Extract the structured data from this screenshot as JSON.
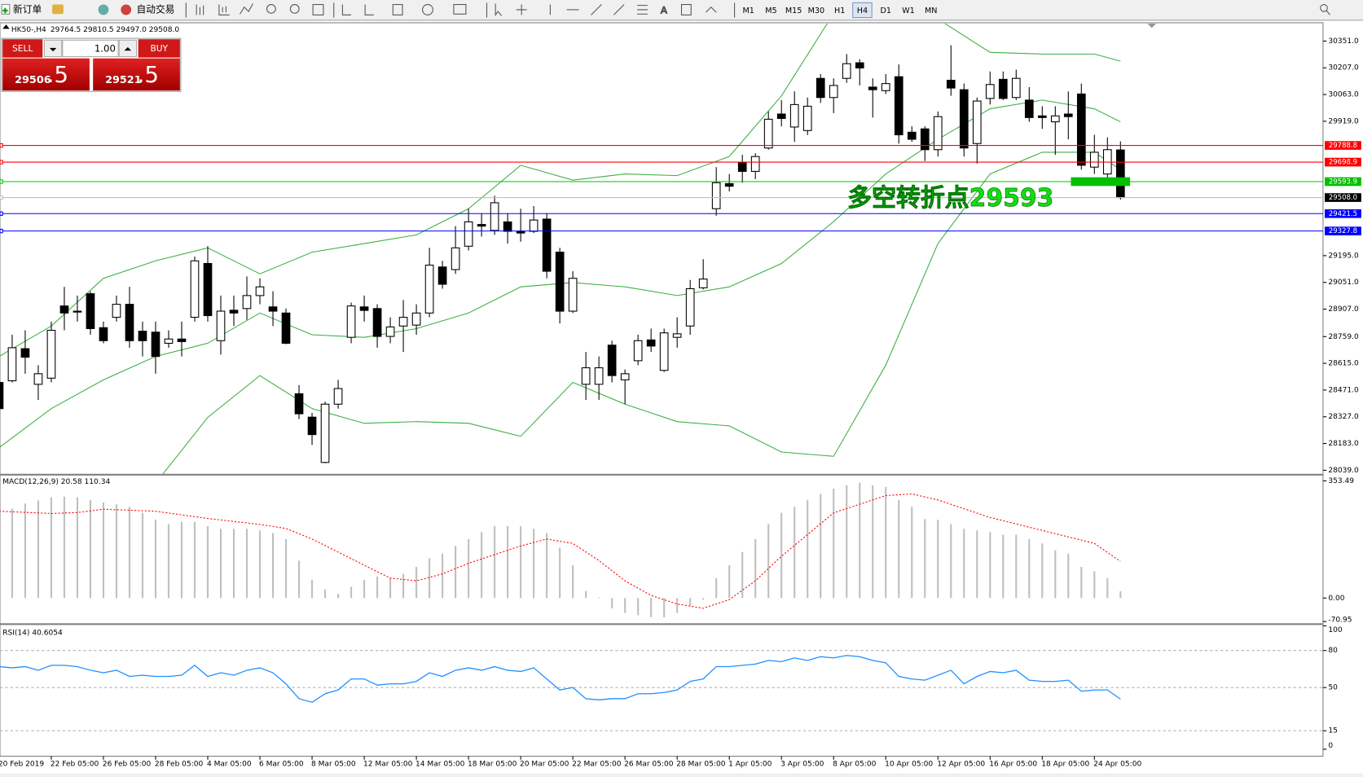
{
  "toolbar": {
    "new_order": "新订单",
    "auto_trading": "自动交易",
    "timeframes": [
      "M1",
      "M5",
      "M15",
      "M30",
      "H1",
      "H4",
      "D1",
      "W1",
      "MN"
    ]
  },
  "trade_panel": {
    "sell": "SELL",
    "buy": "BUY",
    "lots": "1.00",
    "sell_price": "29506",
    "sell_pips": ".5",
    "buy_price": "29521",
    "buy_pips": ".5"
  },
  "chart_data": [
    {
      "type": "candlestick",
      "title": "HK50-,H4",
      "subtitle": "29764.5 29810.5 29497.0 29508.0",
      "categories": [
        "20 Feb 2019",
        null,
        null,
        null,
        "22 Feb 05:00",
        null,
        null,
        null,
        "26 Feb 05:00",
        null,
        null,
        null,
        "28 Feb 05:00",
        null,
        null,
        null,
        "4 Mar 05:00",
        null,
        null,
        null,
        "6 Mar 05:00",
        null,
        null,
        null,
        "8 Mar 05:00",
        null,
        null,
        null,
        "12 Mar 05:00",
        null,
        null,
        null,
        "14 Mar 05:00",
        null,
        null,
        null,
        "18 Mar 05:00",
        null,
        null,
        null,
        "20 Mar 05:00",
        null,
        null,
        null,
        "22 Mar 05:00",
        null,
        null,
        null,
        "26 Mar 05:00",
        null,
        null,
        null,
        "28 Mar 05:00",
        null,
        null,
        null,
        "1 Apr 05:00",
        null,
        null,
        null,
        "3 Apr 05:00",
        null,
        null,
        null,
        "8 Apr 05:00",
        null,
        null,
        null,
        "10 Apr 05:00",
        null,
        null,
        null,
        "12 Apr 05:00",
        null,
        null,
        null,
        "16 Apr 05:00",
        null,
        null,
        null,
        "18 Apr 05:00",
        null,
        null,
        null,
        "24 Apr 05:00",
        null,
        null
      ],
      "open": [
        28512,
        28521,
        28694,
        28502,
        28535,
        28924,
        28896,
        28990,
        28807,
        28863,
        28933,
        28788,
        28783,
        28723,
        28746,
        28863,
        29153,
        28737,
        28901,
        28910,
        28980,
        28919,
        28886,
        28451,
        28325,
        28081,
        28395,
        28755,
        28919,
        28910,
        28760,
        28816,
        28821,
        28886,
        29134,
        29120,
        29246,
        29363,
        29331,
        29377,
        29326,
        29326,
        29392,
        29214,
        28896,
        28502,
        28502,
        28713,
        28526,
        28629,
        28741,
        28577,
        28755,
        28816,
        29022,
        29448,
        29583,
        29695,
        29649,
        29775,
        29958,
        29888,
        29869,
        30150,
        30047,
        30150,
        30234,
        30103,
        30084,
        30159,
        29860,
        29878,
        29766,
        30140,
        30089,
        29799,
        30042,
        30145,
        30047,
        30033,
        29948,
        29916,
        29958,
        30066,
        29672,
        29635,
        29764.5
      ],
      "high": [
        28559,
        28769,
        28793,
        28605,
        28840,
        29027,
        28980,
        29003,
        28840,
        28980,
        29027,
        28840,
        28840,
        28793,
        28840,
        29190,
        29246,
        28980,
        28980,
        29083,
        29073,
        29003,
        28910,
        28498,
        28348,
        28409,
        28526,
        28942,
        28980,
        28933,
        28863,
        28956,
        28933,
        29237,
        29167,
        29354,
        29448,
        29424,
        29518,
        29424,
        29448,
        29462,
        29424,
        29237,
        29111,
        28676,
        28652,
        28737,
        28582,
        28769,
        28802,
        28802,
        28863,
        29064,
        29176,
        29672,
        29635,
        29738,
        29747,
        29972,
        30033,
        30080,
        30047,
        30173,
        30150,
        30281,
        30253,
        30150,
        30173,
        30225,
        29892,
        29892,
        29972,
        30328,
        30122,
        30047,
        30187,
        30187,
        30197,
        30103,
        30000,
        30000,
        30080,
        30122,
        29846,
        29832,
        29810.5
      ],
      "low": [
        28348,
        28512,
        28559,
        28418,
        28512,
        28793,
        28840,
        28769,
        28723,
        28840,
        28699,
        28652,
        28559,
        28699,
        28652,
        28840,
        28840,
        28662,
        28816,
        28849,
        28933,
        28816,
        28718,
        28315,
        28175,
        28077,
        28371,
        28723,
        28840,
        28699,
        28723,
        28676,
        28769,
        28863,
        29017,
        29097,
        29223,
        29298,
        29307,
        29260,
        29270,
        29317,
        29073,
        28830,
        28886,
        28418,
        28418,
        28512,
        28395,
        28605,
        28676,
        28568,
        28699,
        28769,
        29013,
        29410,
        29541,
        29588,
        29607,
        29766,
        29892,
        29808,
        29845,
        30019,
        29963,
        30126,
        30112,
        29939,
        30066,
        29799,
        29808,
        29705,
        29729,
        30056,
        29729,
        29691,
        30009,
        30033,
        30033,
        29916,
        29878,
        29738,
        29822,
        29658,
        29635,
        29616,
        29497.0
      ],
      "close": [
        28371,
        28699,
        28648,
        28559,
        28793,
        28886,
        28891,
        28802,
        28737,
        28933,
        28737,
        28737,
        28652,
        28746,
        28732,
        29167,
        28872,
        28896,
        28886,
        28980,
        29027,
        28896,
        28723,
        28343,
        28231,
        28395,
        28479,
        28924,
        28900,
        28760,
        28811,
        28863,
        28886,
        29144,
        29041,
        29237,
        29377,
        29354,
        29480,
        29326,
        29317,
        29387,
        29111,
        28896,
        29073,
        28591,
        28591,
        28549,
        28559,
        28737,
        28708,
        28779,
        28774,
        29017,
        29069,
        29588,
        29569,
        29649,
        29729,
        29930,
        29934,
        30009,
        30000,
        30047,
        30112,
        30229,
        30206,
        30089,
        30122,
        29846,
        29822,
        29766,
        29944,
        30098,
        29775,
        30028,
        30117,
        30042,
        30150,
        29939,
        29939,
        29948,
        29944,
        29682,
        29752,
        29766,
        29508.0
      ],
      "up_color": "#ffffff",
      "down_color": "#000000",
      "ylim": [
        28020,
        30445
      ],
      "yticks": [
        {
          "value": 30351,
          "label": "30351.0"
        },
        {
          "value": 30207,
          "label": "30207.0"
        },
        {
          "value": 30063,
          "label": "30063.0"
        },
        {
          "value": 29919,
          "label": "29919.0"
        },
        {
          "value": 29195,
          "label": "29195.0"
        },
        {
          "value": 29051,
          "label": "29051.0"
        },
        {
          "value": 28907,
          "label": "28907.0"
        },
        {
          "value": 28759,
          "label": "28759.0"
        },
        {
          "value": 28615,
          "label": "28615.0"
        },
        {
          "value": 28471,
          "label": "28471.0"
        },
        {
          "value": 28327,
          "label": "28327.0"
        },
        {
          "value": 28183,
          "label": "28183.0"
        },
        {
          "value": 28039,
          "label": "28039.0"
        }
      ],
      "overlays": [
        {
          "color": "#3cb043",
          "x": [
            0,
            4,
            8,
            12,
            16,
            20,
            24,
            28,
            32,
            36,
            40,
            44,
            48,
            52,
            56,
            60,
            64,
            68,
            72,
            76,
            80,
            84,
            86
          ],
          "values": [
            28652,
            28816,
            29073,
            29167,
            29237,
            29097,
            29214,
            29260,
            29307,
            29448,
            29682,
            29602,
            29635,
            29626,
            29729,
            30056,
            30500,
            30520,
            30470,
            30290,
            30281,
            30281,
            30243
          ]
        },
        {
          "color": "#3cb043",
          "x": [
            0,
            4,
            8,
            12,
            16,
            20,
            24,
            28,
            32,
            36,
            40,
            44,
            48,
            52,
            56,
            60,
            64,
            68,
            72,
            76,
            80,
            84,
            86
          ],
          "values": [
            28161,
            28371,
            28526,
            28652,
            28723,
            28886,
            28769,
            28755,
            28802,
            28886,
            29027,
            29050,
            29027,
            28980,
            29027,
            29153,
            29378,
            29635,
            29822,
            29986,
            30033,
            29986,
            29916
          ]
        },
        {
          "color": "#3cb043",
          "x": [
            12,
            16,
            20,
            24,
            28,
            32,
            36,
            40,
            44,
            48,
            52,
            56,
            60,
            64,
            68,
            72,
            76,
            80,
            84,
            86
          ],
          "values": [
            27969,
            28324,
            28549,
            28371,
            28292,
            28301,
            28292,
            28222,
            28512,
            28395,
            28301,
            28278,
            28137,
            28114,
            28605,
            29260,
            29635,
            29752,
            29752,
            29658
          ]
        }
      ],
      "levels": [
        {
          "value": 29788.8,
          "color": "#ff0000"
        },
        {
          "value": 29698.9,
          "color": "#ff0000"
        },
        {
          "value": 29593.9,
          "color": "#00c000"
        },
        {
          "value": 29508.0,
          "label": "29508.0",
          "color": "#c0c0c0",
          "tag_color": "#000000"
        },
        {
          "value": 29421.5,
          "color": "#0000ff"
        },
        {
          "value": 29327.8,
          "color": "#0000ff"
        }
      ],
      "annotation": {
        "text": "多空转折点29593",
        "color": "#11dd11"
      }
    },
    {
      "type": "macd",
      "title": "MACD(12,26,9) 20.58 110.34",
      "values": [
        257,
        270,
        285,
        295,
        304,
        306,
        304,
        296,
        288,
        283,
        275,
        257,
        236,
        223,
        230,
        230,
        217,
        209,
        209,
        209,
        204,
        196,
        178,
        113,
        55,
        26,
        13,
        34,
        55,
        65,
        60,
        73,
        94,
        120,
        134,
        157,
        178,
        199,
        217,
        217,
        217,
        209,
        196,
        152,
        99,
        21,
        2,
        -31,
        -45,
        -52,
        -58,
        -58,
        -45,
        -24,
        -5,
        60,
        99,
        139,
        178,
        223,
        257,
        275,
        296,
        314,
        330,
        340,
        348,
        340,
        335,
        296,
        275,
        238,
        236,
        223,
        209,
        204,
        199,
        191,
        191,
        178,
        165,
        144,
        134,
        94,
        81,
        60,
        20.58
      ],
      "color": "#c0c0c0",
      "signal": {
        "color": "#ff0000",
        "x": [
          0,
          4,
          6,
          8,
          12,
          16,
          20,
          22,
          24,
          28,
          30,
          32,
          34,
          36,
          40,
          42,
          44,
          46,
          48,
          50,
          52,
          54,
          56,
          58,
          60,
          64,
          68,
          70,
          72,
          76,
          80,
          84,
          86
        ],
        "values": [
          262,
          255,
          258,
          268,
          262,
          240,
          222,
          210,
          178,
          99,
          60,
          52,
          73,
          105,
          157,
          178,
          165,
          113,
          52,
          8,
          -18,
          -31,
          -5,
          52,
          126,
          257,
          309,
          314,
          296,
          243,
          204,
          165,
          110.34
        ]
      },
      "ylim": [
        -76,
        367
      ],
      "yticks": [
        353.49,
        {
          "value": 0,
          "label": "0.00"
        },
        -70.95
      ]
    },
    {
      "type": "line",
      "title": "RSI(14) 40.6054",
      "values": [
        67,
        66,
        67,
        64,
        68,
        68,
        67,
        64,
        62,
        64,
        59,
        60,
        59,
        59,
        60,
        68,
        59,
        62,
        60,
        64,
        66,
        62,
        53,
        41,
        38,
        45,
        48,
        57,
        57,
        52,
        53,
        53,
        55,
        62,
        59,
        64,
        66,
        64,
        67,
        64,
        63,
        66,
        57,
        48,
        50,
        41,
        40,
        41,
        41,
        45,
        45,
        46,
        48,
        55,
        57,
        67,
        67,
        68,
        69,
        72,
        71,
        74,
        72,
        75,
        74,
        76,
        75,
        72,
        70,
        59,
        57,
        56,
        60,
        64,
        53,
        59,
        63,
        62,
        64,
        56,
        55,
        55,
        56,
        47,
        48,
        48,
        40.6054
      ],
      "color": "#1e90ff",
      "ylim": [
        0,
        100
      ],
      "yticks": [
        100,
        80,
        50,
        15,
        0
      ],
      "grid": true
    }
  ]
}
